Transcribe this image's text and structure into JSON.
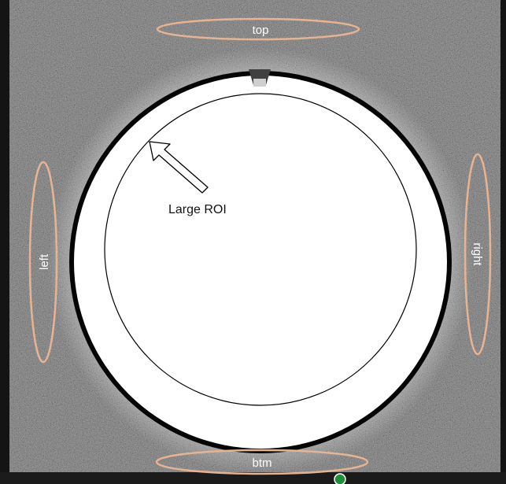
{
  "image": {
    "region_labels": {
      "top": "top",
      "left": "left",
      "right": "right",
      "bottom": "btm"
    },
    "annotation": {
      "label": "Large ROI",
      "icon": "arrow-up-left-icon"
    },
    "colors": {
      "background_noise": "#3f3f3f",
      "dark_border": "#141414",
      "ring": "#050505",
      "phantom": "#ffffff",
      "region_outline": "#e7b493",
      "marker": "#1f8f3a"
    }
  }
}
